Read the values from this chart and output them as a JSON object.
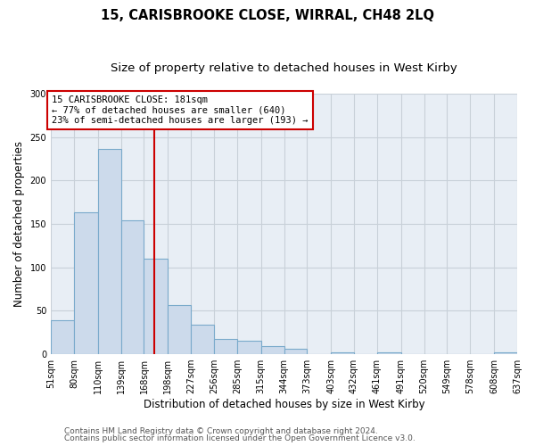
{
  "title": "15, CARISBROOKE CLOSE, WIRRAL, CH48 2LQ",
  "subtitle": "Size of property relative to detached houses in West Kirby",
  "xlabel": "Distribution of detached houses by size in West Kirby",
  "ylabel": "Number of detached properties",
  "bin_edges": [
    51,
    80,
    110,
    139,
    168,
    198,
    227,
    256,
    285,
    315,
    344,
    373,
    403,
    432,
    461,
    491,
    520,
    549,
    578,
    608,
    637
  ],
  "bar_heights": [
    39,
    163,
    236,
    154,
    110,
    57,
    34,
    18,
    15,
    9,
    6,
    0,
    2,
    0,
    2,
    0,
    0,
    0,
    0,
    2
  ],
  "bar_color": "#ccdaeb",
  "bar_edgecolor": "#7aaacb",
  "property_line_x": 181,
  "property_line_color": "#cc0000",
  "annotation_title": "15 CARISBROOKE CLOSE: 181sqm",
  "annotation_line1": "← 77% of detached houses are smaller (640)",
  "annotation_line2": "23% of semi-detached houses are larger (193) →",
  "annotation_box_color": "#cc0000",
  "annotation_bg": "#ffffff",
  "ylim": [
    0,
    300
  ],
  "yticks": [
    0,
    50,
    100,
    150,
    200,
    250,
    300
  ],
  "tick_labels": [
    "51sqm",
    "80sqm",
    "110sqm",
    "139sqm",
    "168sqm",
    "198sqm",
    "227sqm",
    "256sqm",
    "285sqm",
    "315sqm",
    "344sqm",
    "373sqm",
    "403sqm",
    "432sqm",
    "461sqm",
    "491sqm",
    "520sqm",
    "549sqm",
    "578sqm",
    "608sqm",
    "637sqm"
  ],
  "footer1": "Contains HM Land Registry data © Crown copyright and database right 2024.",
  "footer2": "Contains public sector information licensed under the Open Government Licence v3.0.",
  "fig_bg_color": "#ffffff",
  "plot_bg_color": "#e8eef5",
  "grid_color": "#c8d0d8",
  "title_fontsize": 10.5,
  "subtitle_fontsize": 9.5,
  "axis_label_fontsize": 8.5,
  "tick_fontsize": 7,
  "footer_fontsize": 6.5,
  "annot_fontsize": 7.5
}
